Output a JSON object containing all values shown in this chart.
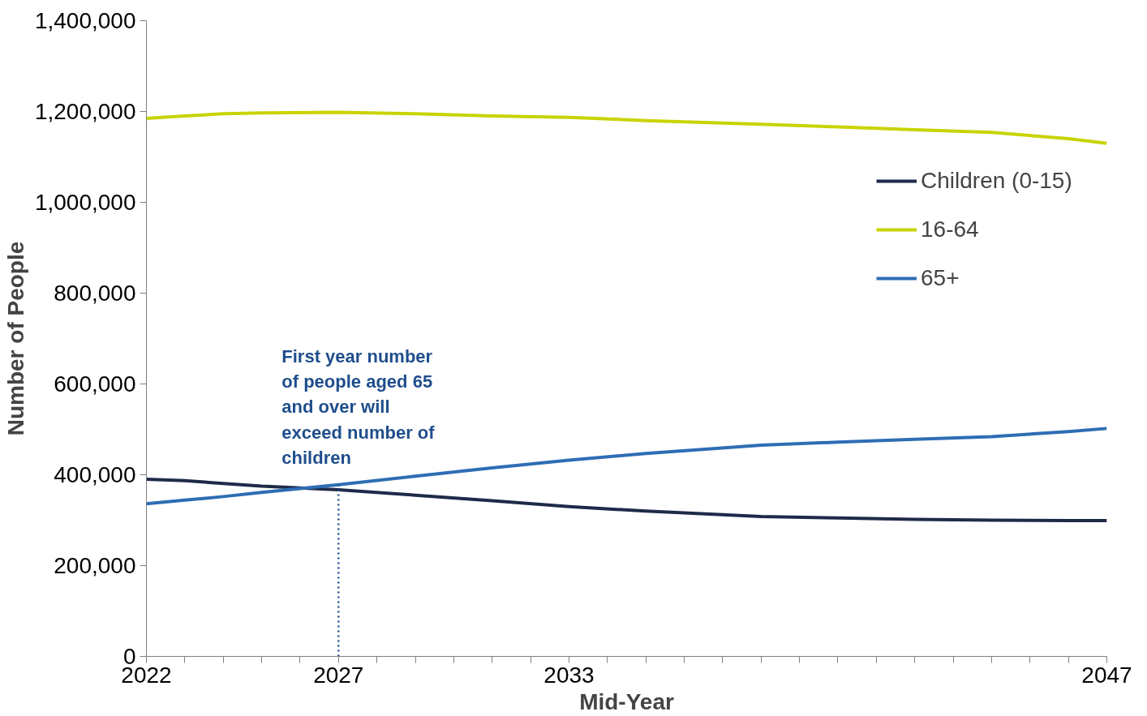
{
  "chart_data": {
    "type": "line",
    "xlabel": "Mid-Year",
    "ylabel": "Number of People",
    "x": [
      2022,
      2023,
      2024,
      2025,
      2027,
      2029,
      2031,
      2033,
      2035,
      2038,
      2040,
      2042,
      2044,
      2046,
      2047
    ],
    "series": [
      {
        "name": "Children (0-15)",
        "color": "#1f2a4a",
        "values": [
          390000,
          387000,
          381000,
          375000,
          367000,
          355000,
          343000,
          330000,
          320000,
          308000,
          305000,
          302000,
          300000,
          299000,
          299000
        ]
      },
      {
        "name": "16-64",
        "color": "#c8d400",
        "values": [
          1185000,
          1190000,
          1195000,
          1197000,
          1198000,
          1195000,
          1190000,
          1187000,
          1180000,
          1172000,
          1166000,
          1160000,
          1154000,
          1140000,
          1130000
        ]
      },
      {
        "name": "65+",
        "color": "#2e6db4",
        "values": [
          336000,
          344000,
          352000,
          361000,
          378000,
          397000,
          415000,
          432000,
          447000,
          465000,
          472000,
          478000,
          484000,
          495000,
          502000
        ]
      }
    ],
    "xlim": [
      2022,
      2047
    ],
    "xticks": [
      {
        "value": 2022,
        "label": "2022"
      },
      {
        "value": 2023,
        "label": null
      },
      {
        "value": 2024,
        "label": null
      },
      {
        "value": 2025,
        "label": null
      },
      {
        "value": 2026,
        "label": null
      },
      {
        "value": 2027,
        "label": "2027"
      },
      {
        "value": 2028,
        "label": null
      },
      {
        "value": 2029,
        "label": null
      },
      {
        "value": 2030,
        "label": null
      },
      {
        "value": 2031,
        "label": null
      },
      {
        "value": 2032,
        "label": null
      },
      {
        "value": 2033,
        "label": "2033"
      },
      {
        "value": 2034,
        "label": null
      },
      {
        "value": 2035,
        "label": null
      },
      {
        "value": 2036,
        "label": null
      },
      {
        "value": 2037,
        "label": null
      },
      {
        "value": 2038,
        "label": null
      },
      {
        "value": 2039,
        "label": null
      },
      {
        "value": 2040,
        "label": null
      },
      {
        "value": 2041,
        "label": null
      },
      {
        "value": 2042,
        "label": null
      },
      {
        "value": 2043,
        "label": null
      },
      {
        "value": 2044,
        "label": null
      },
      {
        "value": 2045,
        "label": null
      },
      {
        "value": 2046,
        "label": null
      },
      {
        "value": 2047,
        "label": "2047"
      }
    ],
    "ylim": [
      0,
      1400000
    ],
    "yticks": [
      0,
      {
        "value": 200000,
        "label": "200,000"
      },
      {
        "value": 400000,
        "label": "400,000"
      },
      {
        "value": 600000,
        "label": "600,000"
      },
      {
        "value": 800000,
        "label": "800,000"
      },
      {
        "value": 1000000,
        "label": "1,000,000"
      },
      {
        "value": 1200000,
        "label": "1,200,000"
      },
      {
        "value": 1400000,
        "label": "1,400,000"
      }
    ],
    "ref_lines": [
      {
        "axis": "x",
        "value": 2027,
        "color": "#1f4e8c",
        "line_style": "dotted"
      }
    ],
    "annotations": [
      {
        "text": "First year number\nof people aged 65\nand over will\nexceed number of\nchildren",
        "x": 2027,
        "y": 367000
      }
    ],
    "grid": false,
    "legend": "right",
    "marker": "none",
    "line_style": "solid"
  }
}
